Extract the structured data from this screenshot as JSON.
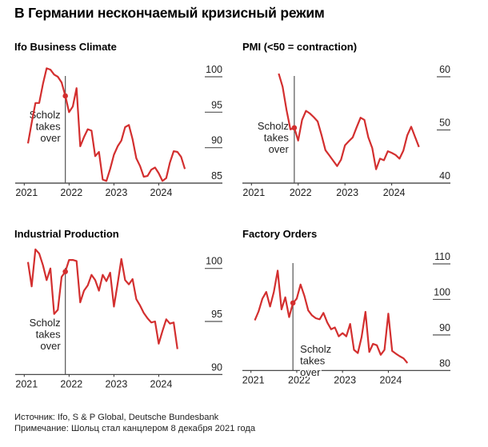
{
  "title": "В Германии нескончаемый кризисный режим",
  "footer": {
    "source": "Источник: Ifo, S & P Global, Deutsche Bundesbank",
    "note": "Примечание: Шольц стал канцлером 8 декабря 2021 года"
  },
  "colors": {
    "line": "#d32f2f",
    "axis": "#333333",
    "marker_line": "#555555"
  },
  "chart_data": [
    {
      "type": "line",
      "title": "Ifo Business Climate",
      "xticks": [
        "2021",
        "2022",
        "2023",
        "2024"
      ],
      "yticks": [
        100,
        95,
        90,
        85
      ],
      "ylim": [
        85,
        102
      ],
      "xlim": [
        "2020-10",
        "2025-05"
      ],
      "annotation": {
        "date": "2021-12",
        "lines": [
          "Scholz",
          "takes",
          "over"
        ]
      },
      "start": "2021-02",
      "values": [
        90.6,
        93.5,
        96.3,
        96.3,
        99,
        101.2,
        101,
        100.3,
        100,
        99.2,
        97.3,
        95,
        95.8,
        98.4,
        90.2,
        91.5,
        92.6,
        92.4,
        88.8,
        89.4,
        85.5,
        85.3,
        87,
        89,
        90.2,
        91,
        92.9,
        93.2,
        91.2,
        88.5,
        87.4,
        85.9,
        86,
        86.9,
        87.2,
        86.4,
        85.3,
        85.7,
        87.9,
        89.5,
        89.4,
        88.7,
        87
      ]
    },
    {
      "type": "line",
      "title": "PMI (<50 = contraction)",
      "xticks": [
        "2021",
        "2022",
        "2023",
        "2024"
      ],
      "yticks": [
        60,
        50,
        40
      ],
      "ylim": [
        40,
        62
      ],
      "xlim": [
        "2020-11",
        "2025-05"
      ],
      "annotation": {
        "date": "2021-12",
        "lines": [
          "Scholz",
          "takes",
          "over"
        ]
      },
      "start": "2021-08",
      "values": [
        60.6,
        58.1,
        53.8,
        50.1,
        50.4,
        48,
        51.9,
        53.6,
        53.1,
        52.4,
        51.6,
        49,
        46.2,
        45.2,
        44.2,
        43.2,
        44.4,
        47.1,
        47.9,
        48.6,
        50.5,
        52.3,
        51.9,
        48.6,
        46.6,
        42.6,
        44.6,
        44.3,
        46,
        45.7,
        45.3,
        44.6,
        46.1,
        49,
        50.6,
        48.7,
        46.8
      ]
    },
    {
      "type": "line",
      "title": "Industrial Production",
      "xticks": [
        "2021",
        "2022",
        "2023",
        "2024"
      ],
      "yticks": [
        100,
        95,
        90
      ],
      "ylim": [
        90,
        102.5
      ],
      "xlim": [
        "2020-10",
        "2025-05"
      ],
      "annotation": {
        "date": "2021-12",
        "lines": [
          "Scholz",
          "takes",
          "over"
        ]
      },
      "start": "2021-02",
      "values": [
        100.6,
        98.3,
        101.8,
        101.4,
        100.3,
        98.9,
        100,
        95.7,
        96.1,
        99.2,
        99.7,
        100.8,
        100.8,
        100.7,
        96.8,
        97.9,
        98.4,
        99.4,
        98.9,
        97.9,
        99.4,
        98.8,
        99.6,
        96.4,
        98.6,
        100.9,
        98.9,
        98.5,
        99,
        97.1,
        96.5,
        95.8,
        95.3,
        94.9,
        95,
        92.9,
        94.1,
        95.2,
        94.8,
        94.9,
        92.4
      ]
    },
    {
      "type": "line",
      "title": "Factory Orders",
      "xticks": [
        "2021",
        "2022",
        "2023",
        "2024"
      ],
      "yticks": [
        110,
        100,
        90,
        80
      ],
      "ylim": [
        80,
        112
      ],
      "xlim": [
        "2020-11",
        "2025-05"
      ],
      "annotation": {
        "date": "2021-12",
        "lines": [
          "Scholz",
          "takes",
          "over"
        ]
      },
      "start": "2021-02",
      "values": [
        94.1,
        96.6,
        100.2,
        102.1,
        98,
        102.1,
        108.1,
        97.2,
        100.6,
        95,
        99,
        100.2,
        104.2,
        101,
        96.9,
        95.5,
        94.7,
        94.4,
        96.2,
        93.5,
        91.6,
        92.1,
        89.6,
        90.5,
        89.6,
        93.1,
        85.8,
        84.9,
        89.4,
        96.5,
        85.2,
        87.5,
        87.1,
        84.4,
        85.8,
        96,
        85.5,
        84.7,
        84,
        83.4,
        82.1
      ]
    }
  ]
}
